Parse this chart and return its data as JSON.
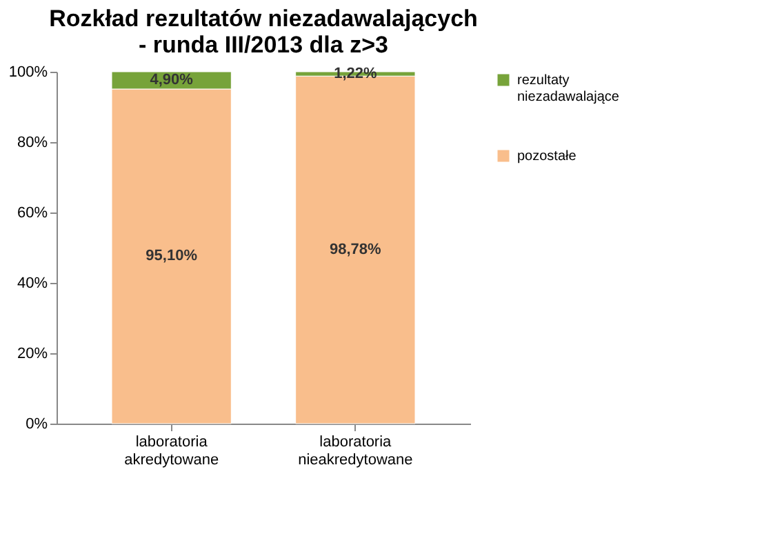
{
  "chart_data": {
    "type": "bar",
    "title": "Rozkład rezultatów niezadawalających\n- runda III/2013 dla z>3",
    "categories": [
      "laboratoria akredytowane",
      "laboratoria nieakredytowane"
    ],
    "stacked": true,
    "series": [
      {
        "name": "pozostałe",
        "color": "#f9be8c",
        "values": [
          95.1,
          98.78
        ],
        "value_labels": [
          "95,10%",
          "98,78%"
        ]
      },
      {
        "name": "rezultaty niezadawalające",
        "color": "#77a33a",
        "values": [
          4.9,
          1.22
        ],
        "value_labels": [
          "4,90%",
          "1,22%"
        ]
      }
    ],
    "ylim": [
      0,
      100
    ],
    "yticks": [
      {
        "value": 0,
        "label": "0%"
      },
      {
        "value": 20,
        "label": "20%"
      },
      {
        "value": 40,
        "label": "40%"
      },
      {
        "value": 60,
        "label": "60%"
      },
      {
        "value": 80,
        "label": "80%"
      },
      {
        "value": 100,
        "label": "100%"
      }
    ],
    "legend": "right"
  }
}
